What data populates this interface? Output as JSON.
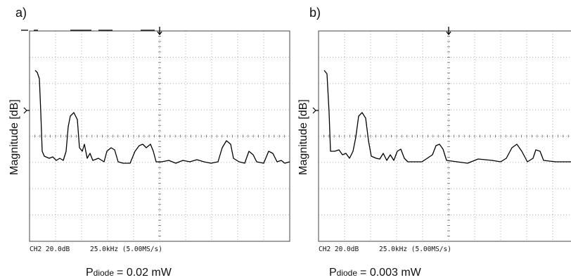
{
  "panels": [
    {
      "label": "a)",
      "y_axis_label": "Magnitude [dB]",
      "scope_channel": "CH2 20.0dB",
      "scope_span": "25.0kHz (5.00MS/s)",
      "caption_symbol": "P",
      "caption_subscript": "diode",
      "caption_rest": "= 0.02 mW"
    },
    {
      "label": "b)",
      "y_axis_label": "Magnitude [dB]",
      "scope_channel": "CH2 20.0dB",
      "scope_span": "25.0kHz (5.00MS/s)",
      "caption_symbol": "P",
      "caption_subscript": "diode",
      "caption_rest": "= 0.003 mW"
    }
  ]
}
